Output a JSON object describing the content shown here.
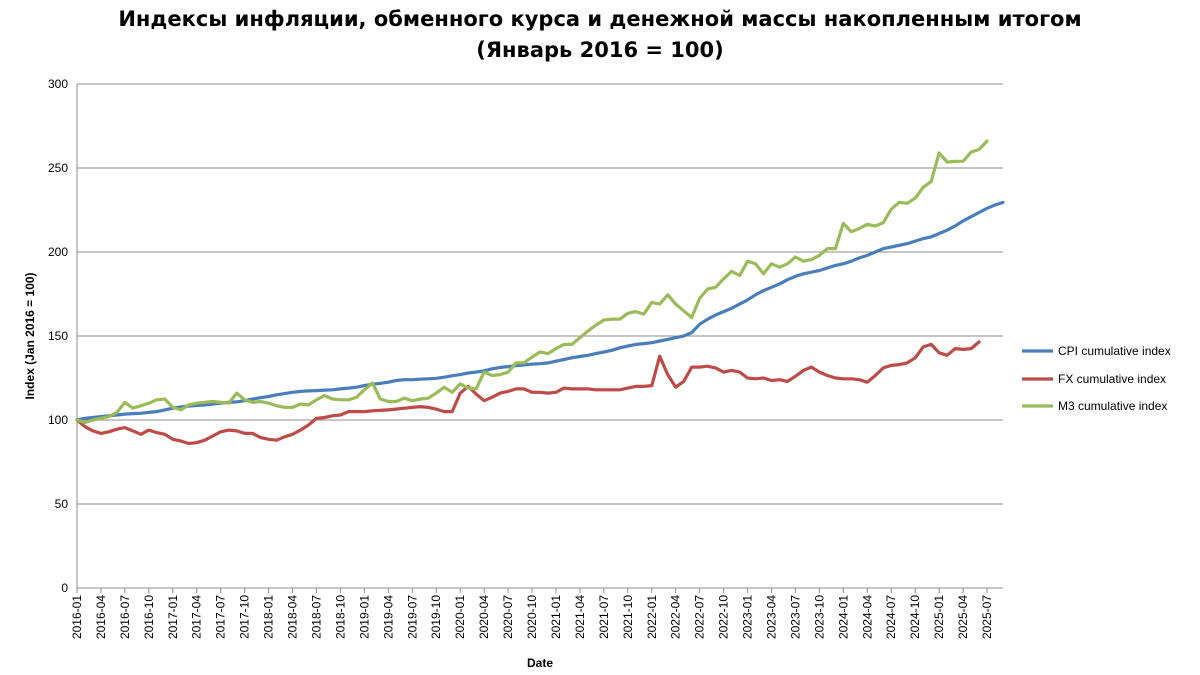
{
  "chart_data": {
    "type": "line",
    "title": "Индексы инфляции, обменного курса и денежной массы накопленным итогом",
    "subtitle": "(Январь 2016 = 100)",
    "xlabel": "Date",
    "ylabel": "Index (Jan 2016 = 100)",
    "ylim": [
      0,
      300
    ],
    "yticks": [
      0,
      50,
      100,
      150,
      200,
      250,
      300
    ],
    "x_range": [
      "2016-01",
      "2025-07"
    ],
    "xticks": [
      "2016-01",
      "2016-04",
      "2016-07",
      "2016-10",
      "2017-01",
      "2017-04",
      "2017-07",
      "2017-10",
      "2018-01",
      "2018-04",
      "2018-07",
      "2018-10",
      "2019-01",
      "2019-04",
      "2019-07",
      "2019-10",
      "2020-01",
      "2020-04",
      "2020-07",
      "2020-10",
      "2021-01",
      "2021-04",
      "2021-07",
      "2021-10",
      "2022-01",
      "2022-04",
      "2022-07",
      "2022-10",
      "2023-01",
      "2023-04",
      "2023-07",
      "2023-10",
      "2024-01",
      "2024-04",
      "2024-07",
      "2024-10",
      "2025-01",
      "2025-04",
      "2025-07"
    ],
    "grid": "horizontal",
    "legend_position": "right",
    "series": [
      {
        "name": "CPI cumulative index",
        "color": "#4a7ebb",
        "values": [
          100,
          101,
          101.5,
          102,
          102.5,
          103,
          103.5,
          103.8,
          104,
          104.5,
          105,
          106,
          107,
          107.8,
          108.3,
          108.7,
          109,
          109.5,
          110,
          110.5,
          110.8,
          111.5,
          112.5,
          113.3,
          114,
          115,
          115.7,
          116.5,
          117,
          117.3,
          117.5,
          117.8,
          118,
          118.5,
          119,
          119.5,
          120.5,
          121.3,
          121.8,
          122.5,
          123.5,
          124,
          124,
          124.3,
          124.5,
          124.8,
          125.5,
          126.3,
          127,
          128,
          128.5,
          129.3,
          130.5,
          131.3,
          131.8,
          132.3,
          132.8,
          133.3,
          133.5,
          134,
          135,
          136,
          137,
          137.8,
          138.5,
          139.5,
          140.5,
          141.5,
          143,
          144,
          145,
          145.5,
          146,
          147,
          148,
          149,
          150,
          152,
          157,
          160,
          162.5,
          164.5,
          166.5,
          169,
          171.5,
          174.5,
          177,
          179,
          181,
          183.5,
          185.5,
          187,
          188,
          189,
          190.5,
          192,
          193,
          194.5,
          196.5,
          198,
          200,
          202,
          203,
          204,
          205,
          206.5,
          208,
          209,
          211,
          213,
          215.5,
          218.5,
          221,
          223.5,
          226,
          228,
          229.5
        ]
      },
      {
        "name": "FX cumulative index",
        "color": "#be4b48",
        "values": [
          100,
          96,
          93.5,
          92,
          93,
          94.5,
          95.5,
          93.5,
          91.5,
          94,
          92.5,
          91.5,
          88.5,
          87.5,
          86,
          86.5,
          88,
          90.5,
          93,
          94,
          93.5,
          92,
          92,
          89.5,
          88.5,
          88,
          90,
          91.5,
          94,
          97,
          101,
          101.5,
          102.5,
          103,
          105,
          105,
          105,
          105.5,
          105.8,
          106,
          106.5,
          107,
          107.5,
          108,
          107.5,
          106.5,
          105,
          105,
          116,
          120,
          115.5,
          111.5,
          113.5,
          116,
          117,
          118.5,
          118.5,
          116.5,
          116.5,
          116,
          116.5,
          119,
          118.5,
          118.5,
          118.5,
          118,
          118,
          118,
          118,
          119,
          120,
          120,
          120.5,
          138,
          127,
          119.5,
          123,
          131.5,
          131.5,
          132,
          131,
          128.5,
          129.5,
          128.5,
          125,
          124.5,
          125,
          123.5,
          124,
          123,
          126,
          129.5,
          131.5,
          128.5,
          126.5,
          125,
          124.5,
          124.5,
          124,
          122.5,
          126.5,
          131,
          132.5,
          133,
          134,
          137,
          143.5,
          145,
          140,
          138.5,
          142.5,
          142,
          142.5,
          146.5
        ]
      },
      {
        "name": "M3 cumulative index",
        "color": "#9bbb59",
        "values": [
          100,
          98.5,
          100,
          101,
          102,
          104.5,
          110.5,
          107,
          108.5,
          110,
          112,
          112.5,
          107.5,
          106,
          109,
          110,
          110.5,
          111,
          110.5,
          110,
          116,
          112,
          110.5,
          111,
          110,
          108.5,
          107.5,
          107.5,
          109.5,
          109,
          112,
          114.5,
          112.5,
          112,
          112,
          113.5,
          118,
          122,
          112.5,
          111,
          111,
          113,
          111.5,
          112.5,
          113,
          116,
          119.5,
          116.5,
          121.5,
          119,
          118.5,
          128.5,
          126.5,
          127,
          128.5,
          134,
          134,
          137.5,
          140.5,
          139.5,
          142.5,
          145,
          145,
          149,
          153,
          156.5,
          159.5,
          160,
          160,
          163.5,
          164.5,
          163,
          170,
          169,
          174.5,
          169,
          165,
          161,
          172.5,
          178,
          179,
          184,
          188.5,
          186,
          194.5,
          193,
          187,
          193,
          191,
          193,
          197,
          194.5,
          195.5,
          198,
          202,
          202,
          217,
          212,
          214,
          216.5,
          215.5,
          217.5,
          225.5,
          229.5,
          229,
          232,
          238.5,
          242,
          259,
          253.5,
          254,
          254,
          259.5,
          261,
          266
        ]
      }
    ]
  }
}
